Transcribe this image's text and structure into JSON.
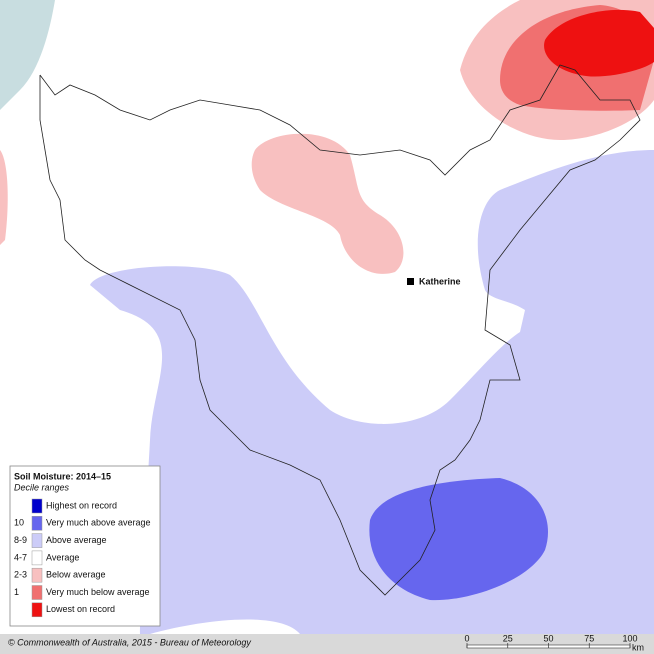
{
  "map": {
    "place_label": "Katherine",
    "legend": {
      "title": "Soil Moisture: 2014–15",
      "subtitle": "Decile ranges",
      "items": [
        {
          "label": "Highest on record",
          "color": "#0000cc"
        },
        {
          "code": "10",
          "label": "Very much above average",
          "color": "#6666ee"
        },
        {
          "code": "8-9",
          "label": "Above average",
          "color": "#ccccf8"
        },
        {
          "code": "4-7",
          "label": "Average",
          "color": "#ffffff"
        },
        {
          "code": "2-3",
          "label": "Below average",
          "color": "#f8c0c0"
        },
        {
          "code": "1",
          "label": "Very much below average",
          "color": "#f07070"
        },
        {
          "label": "Lowest on record",
          "color": "#ee1111"
        }
      ]
    },
    "footer": "© Commonwealth of Australia, 2015 - Bureau of Meteorology",
    "scale": {
      "ticks": [
        0,
        25,
        50,
        75,
        100
      ],
      "unit": "km"
    }
  }
}
